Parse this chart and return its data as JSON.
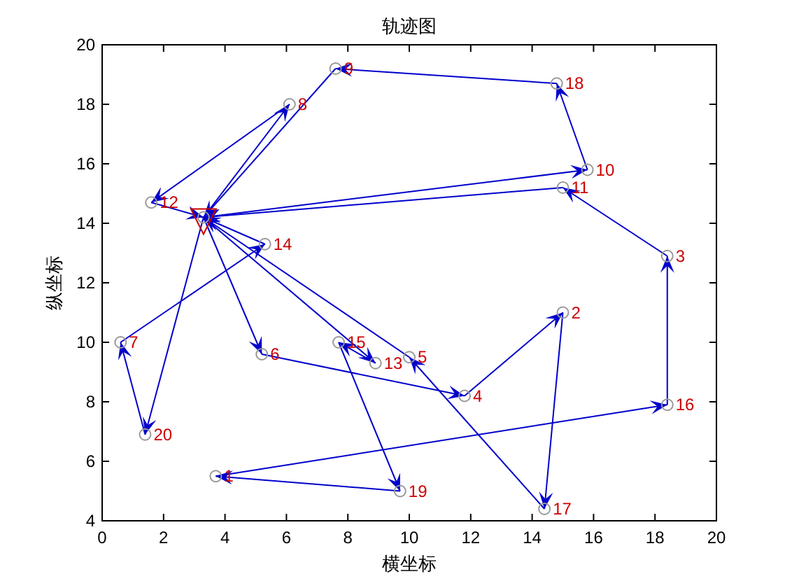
{
  "chart_data": {
    "type": "line",
    "title": "轨迹图",
    "xlabel": "横坐标",
    "ylabel": "纵坐标",
    "xlim": [
      0,
      20
    ],
    "xticks": [
      0,
      2,
      4,
      6,
      8,
      10,
      12,
      14,
      16,
      18,
      20
    ],
    "ylim": [
      4,
      20
    ],
    "yticks": [
      4,
      6,
      8,
      10,
      12,
      14,
      16,
      18,
      20
    ],
    "grid": false,
    "line_style": "solid",
    "series": [
      {
        "color": "#0000cc",
        "x": [
          3.3,
          6.1
        ],
        "values": [
          14.2,
          18.0
        ]
      },
      {
        "color": "#0000cc",
        "x": [
          6.1,
          1.6
        ],
        "values": [
          18.0,
          14.7
        ]
      },
      {
        "color": "#0000cc",
        "x": [
          1.6,
          3.3
        ],
        "values": [
          14.7,
          14.2
        ]
      },
      {
        "color": "#0000cc",
        "x": [
          3.3,
          15.8
        ],
        "values": [
          14.2,
          15.8
        ]
      },
      {
        "color": "#0000cc",
        "x": [
          15.8,
          14.8
        ],
        "values": [
          15.8,
          18.7
        ]
      },
      {
        "color": "#0000cc",
        "x": [
          14.8,
          7.6
        ],
        "values": [
          18.7,
          19.2
        ]
      },
      {
        "color": "#0000cc",
        "x": [
          7.6,
          3.3
        ],
        "values": [
          19.2,
          14.2
        ]
      },
      {
        "color": "#0000cc",
        "x": [
          3.3,
          1.4
        ],
        "values": [
          14.2,
          6.9
        ]
      },
      {
        "color": "#0000cc",
        "x": [
          1.4,
          0.6
        ],
        "values": [
          6.9,
          10.0
        ]
      },
      {
        "color": "#0000cc",
        "x": [
          0.6,
          5.3
        ],
        "values": [
          10.0,
          13.3
        ]
      },
      {
        "color": "#0000cc",
        "x": [
          5.3,
          3.3
        ],
        "values": [
          13.3,
          14.2
        ]
      },
      {
        "color": "#0000cc",
        "x": [
          3.3,
          5.2
        ],
        "values": [
          14.2,
          9.6
        ]
      },
      {
        "color": "#0000cc",
        "x": [
          5.2,
          11.8
        ],
        "values": [
          9.6,
          8.2
        ]
      },
      {
        "color": "#0000cc",
        "x": [
          11.8,
          15.0
        ],
        "values": [
          8.2,
          11.0
        ]
      },
      {
        "color": "#0000cc",
        "x": [
          15.0,
          14.4
        ],
        "values": [
          11.0,
          4.4
        ]
      },
      {
        "color": "#0000cc",
        "x": [
          14.4,
          10.0
        ],
        "values": [
          4.4,
          9.5
        ]
      },
      {
        "color": "#0000cc",
        "x": [
          10.0,
          3.3
        ],
        "values": [
          9.5,
          14.2
        ]
      },
      {
        "color": "#0000cc",
        "x": [
          3.3,
          8.9
        ],
        "values": [
          14.2,
          9.3
        ]
      },
      {
        "color": "#0000cc",
        "x": [
          8.9,
          7.7
        ],
        "values": [
          9.3,
          10.0
        ]
      },
      {
        "color": "#0000cc",
        "x": [
          7.7,
          9.7
        ],
        "values": [
          10.0,
          5.0
        ]
      },
      {
        "color": "#0000cc",
        "x": [
          9.7,
          3.7
        ],
        "values": [
          5.0,
          5.5
        ]
      },
      {
        "color": "#0000cc",
        "x": [
          3.7,
          18.4
        ],
        "values": [
          5.5,
          7.9
        ]
      },
      {
        "color": "#0000cc",
        "x": [
          18.4,
          18.4
        ],
        "values": [
          7.9,
          12.9
        ]
      },
      {
        "color": "#0000cc",
        "x": [
          18.4,
          15.0
        ],
        "values": [
          12.9,
          15.2
        ]
      },
      {
        "color": "#0000cc",
        "x": [
          15.0,
          3.3
        ],
        "values": [
          15.2,
          14.2
        ]
      },
      {
        "type": "scatter",
        "marker": "circle",
        "color": "#999999",
        "x": [
          3.7,
          15.0,
          18.4,
          11.8,
          10.0,
          5.2,
          0.6,
          6.1,
          7.6,
          15.8,
          15.0,
          1.6,
          8.9,
          5.3,
          7.7,
          18.4,
          14.4,
          14.8,
          9.7,
          1.4,
          3.3
        ],
        "values": [
          5.5,
          11.0,
          12.9,
          8.2,
          9.5,
          9.6,
          10.0,
          18.0,
          19.2,
          15.8,
          15.2,
          14.7,
          9.3,
          13.3,
          10.0,
          7.9,
          4.4,
          18.7,
          5.0,
          6.9,
          14.2
        ]
      },
      {
        "type": "scatter",
        "marker": "triangle",
        "color": "#cc0000",
        "x": [
          3.3
        ],
        "values": [
          14.2
        ]
      }
    ],
    "annotations": [
      {
        "text": "1",
        "x": 3.7,
        "y": 5.5
      },
      {
        "text": "2",
        "x": 15.0,
        "y": 11.0
      },
      {
        "text": "3",
        "x": 18.4,
        "y": 12.9
      },
      {
        "text": "4",
        "x": 11.8,
        "y": 8.2
      },
      {
        "text": "5",
        "x": 10.0,
        "y": 9.5
      },
      {
        "text": "6",
        "x": 5.2,
        "y": 9.6
      },
      {
        "text": "7",
        "x": 0.6,
        "y": 10.0
      },
      {
        "text": "8",
        "x": 6.1,
        "y": 18.0
      },
      {
        "text": "9",
        "x": 7.6,
        "y": 19.2
      },
      {
        "text": "10",
        "x": 15.8,
        "y": 15.8
      },
      {
        "text": "11",
        "x": 15.0,
        "y": 15.2
      },
      {
        "text": "12",
        "x": 1.6,
        "y": 14.7
      },
      {
        "text": "13",
        "x": 8.9,
        "y": 9.3
      },
      {
        "text": "14",
        "x": 5.3,
        "y": 13.3
      },
      {
        "text": "15",
        "x": 7.7,
        "y": 10.0
      },
      {
        "text": "16",
        "x": 18.4,
        "y": 7.9
      },
      {
        "text": "17",
        "x": 14.4,
        "y": 4.4
      },
      {
        "text": "18",
        "x": 14.8,
        "y": 18.7
      },
      {
        "text": "19",
        "x": 9.7,
        "y": 5.0
      },
      {
        "text": "20",
        "x": 1.4,
        "y": 6.9
      }
    ]
  }
}
